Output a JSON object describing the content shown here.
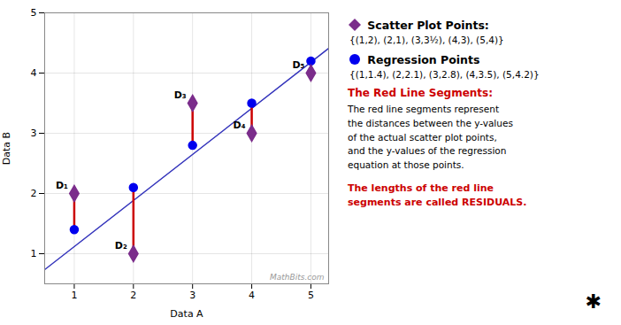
{
  "chart_data": {
    "type": "scatter",
    "xlabel": "Data A",
    "ylabel": "Data B",
    "xlim": [
      0.5,
      5.3
    ],
    "ylim": [
      0.5,
      5.0
    ],
    "xticks": [
      1,
      2,
      3,
      4,
      5
    ],
    "yticks": [
      1,
      2,
      3,
      4,
      5
    ],
    "grid": true,
    "legend": "right",
    "series": [
      {
        "name": " Scatter Plot Points:",
        "type": "scatter",
        "marker": "diamond",
        "color": "#7B2D8B",
        "x": [
          1,
          2,
          3,
          4,
          5
        ],
        "values": [
          2,
          1,
          3.5,
          3,
          4
        ],
        "point_labels": [
          "D₁",
          "D₂",
          "D₃",
          "D₄",
          "D₅"
        ],
        "set_label": "{(1,2), (2,1), (3,3½), (4,3), (5,4)}"
      },
      {
        "name": " Regression Points",
        "type": "scatter",
        "marker": "circle",
        "color": "#0000EE",
        "x": [
          1,
          2,
          3,
          4,
          5
        ],
        "values": [
          1.4,
          2.1,
          2.8,
          3.5,
          4.2
        ],
        "set_label": "{(1,1.4), (2,2.1), (3,2.8), (4,3.5), (5,4.2)}"
      },
      {
        "type": "line",
        "color": "#3333BB",
        "x": [
          0.5,
          5.3
        ],
        "values": [
          0.735,
          4.41
        ]
      },
      {
        "name": "The Red Line Segments:",
        "type": "residual",
        "color": "#CC0000",
        "x": [
          1,
          2,
          3,
          4,
          5
        ],
        "values": [
          2,
          1,
          3.5,
          3,
          4
        ],
        "values_end": [
          1.4,
          2.1,
          2.8,
          3.5,
          4.2
        ],
        "description": "The red line segments represent\nthe distances between the y-values\nof the actual scatter plot points,\nand the y-values of the regression\nequation at those points."
      }
    ],
    "annotations": [
      {
        "text": "MathBits.com"
      },
      {
        "text": "The lengths of the red line\nsegments are called RESIDUALS.",
        "color": "#CC0000"
      },
      {
        "text": "✱"
      }
    ]
  }
}
